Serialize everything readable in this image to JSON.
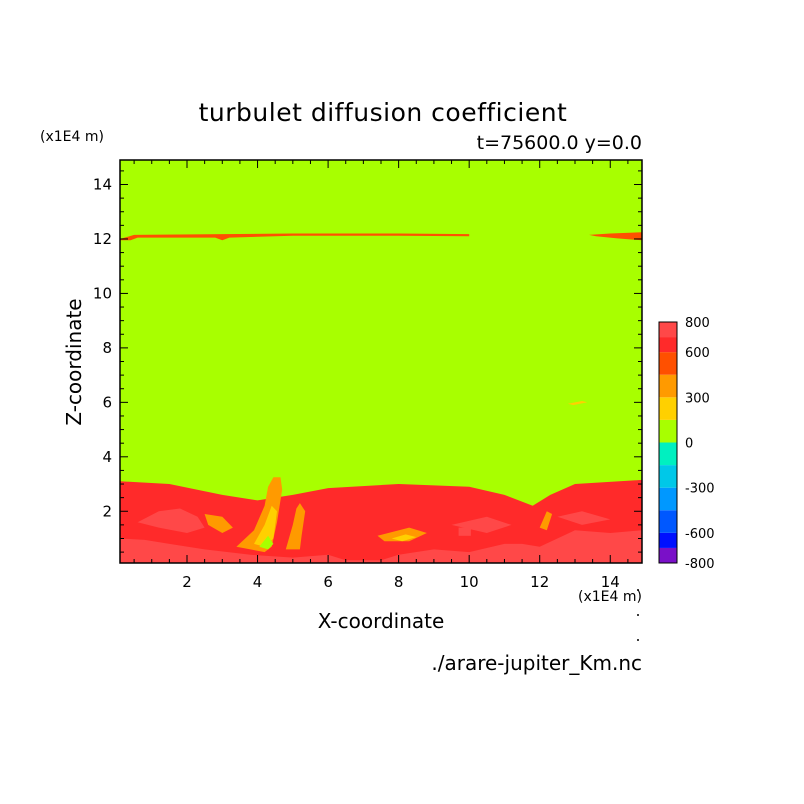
{
  "chart_data": {
    "type": "heatmap",
    "title": "turbulet diffusion coefficient",
    "subtitle": "t=75600.0 y=0.0",
    "xlabel": "X-coordinate",
    "ylabel": "Z-coordinate",
    "x_unit": "(x1E4 m)",
    "y_unit": "(x1E4 m)",
    "xlim": [
      0.1,
      14.9
    ],
    "ylim": [
      0.1,
      14.9
    ],
    "x_ticks": [
      "2",
      "4",
      "6",
      "8",
      "10",
      "12",
      "14"
    ],
    "x_tick_values": [
      2,
      4,
      6,
      8,
      10,
      12,
      14
    ],
    "y_ticks": [
      "2",
      "4",
      "6",
      "8",
      "10",
      "12",
      "14"
    ],
    "y_tick_values": [
      2,
      4,
      6,
      8,
      10,
      12,
      14
    ],
    "colorbar": {
      "labels": [
        "800",
        "600",
        "300",
        "0",
        "-300",
        "-600",
        "-800"
      ],
      "label_values": [
        800,
        600,
        300,
        0,
        -300,
        -600,
        -800
      ],
      "levels": [
        -800,
        -700,
        -600,
        -450,
        -300,
        -150,
        0,
        150,
        300,
        450,
        600,
        700,
        800
      ],
      "colors": [
        "#7a10c8",
        "#0010ff",
        "#0058ff",
        "#0098ff",
        "#00c8e8",
        "#00f0c0",
        "#a8ff00",
        "#ffd000",
        "#ff9a00",
        "#ff5000",
        "#ff2a2a",
        "#ff4848",
        "#ffaaaa"
      ]
    },
    "background_value": 75,
    "regions": [
      {
        "name": "surface-layer",
        "value": 650,
        "points": [
          [
            0.1,
            3.1
          ],
          [
            1.5,
            3.0
          ],
          [
            3,
            2.6
          ],
          [
            4,
            2.4
          ],
          [
            5,
            2.6
          ],
          [
            6,
            2.85
          ],
          [
            8,
            3.0
          ],
          [
            10,
            2.9
          ],
          [
            11,
            2.6
          ],
          [
            11.8,
            2.2
          ],
          [
            12.3,
            2.6
          ],
          [
            13,
            3.0
          ],
          [
            14.9,
            3.15
          ],
          [
            14.9,
            0.1
          ],
          [
            0.1,
            0.1
          ]
        ]
      },
      {
        "name": "upper-band",
        "value": 550,
        "points": [
          [
            0.1,
            12.0
          ],
          [
            0.5,
            12.15
          ],
          [
            3.0,
            12.18
          ],
          [
            5,
            12.2
          ],
          [
            8,
            12.2
          ],
          [
            10,
            12.18
          ],
          [
            10,
            12.1
          ],
          [
            8,
            12.12
          ],
          [
            5,
            12.12
          ],
          [
            3.2,
            12.05
          ],
          [
            3,
            11.95
          ],
          [
            2.8,
            12.05
          ],
          [
            1,
            12.05
          ],
          [
            0.6,
            12.05
          ],
          [
            0.4,
            11.95
          ],
          [
            0.1,
            11.95
          ]
        ]
      },
      {
        "name": "upper-band-right",
        "value": 550,
        "points": [
          [
            13.4,
            12.15
          ],
          [
            14,
            12.2
          ],
          [
            14.9,
            12.25
          ],
          [
            14.9,
            11.95
          ],
          [
            14.2,
            12.02
          ],
          [
            13.6,
            12.1
          ]
        ]
      },
      {
        "name": "small-blob",
        "value": 200,
        "points": [
          [
            12.8,
            5.95
          ],
          [
            13.2,
            6.05
          ],
          [
            13.35,
            6.0
          ],
          [
            12.95,
            5.9
          ]
        ]
      },
      {
        "name": "pink-bottom",
        "value": 780,
        "points": [
          [
            0.1,
            1.0
          ],
          [
            0.8,
            0.95
          ],
          [
            1.5,
            0.8
          ],
          [
            2.5,
            0.6
          ],
          [
            3.8,
            0.4
          ],
          [
            5,
            0.3
          ],
          [
            6,
            0.4
          ],
          [
            6.5,
            0.2
          ],
          [
            7.5,
            0.2
          ],
          [
            8,
            0.4
          ],
          [
            9,
            0.6
          ],
          [
            10,
            0.5
          ],
          [
            11,
            0.8
          ],
          [
            11.5,
            0.8
          ],
          [
            12,
            0.7
          ],
          [
            12.5,
            1.0
          ],
          [
            13,
            1.3
          ],
          [
            14,
            1.2
          ],
          [
            14.9,
            1.3
          ],
          [
            14.9,
            0.1
          ],
          [
            0.1,
            0.1
          ]
        ]
      },
      {
        "name": "pink-left",
        "value": 780,
        "points": [
          [
            0.6,
            1.6
          ],
          [
            1.2,
            2.0
          ],
          [
            1.8,
            2.1
          ],
          [
            2.3,
            1.8
          ],
          [
            2.5,
            1.4
          ],
          [
            2.0,
            1.2
          ],
          [
            1.2,
            1.4
          ]
        ]
      },
      {
        "name": "pink-mid",
        "value": 780,
        "points": [
          [
            9.5,
            1.5
          ],
          [
            10.5,
            1.8
          ],
          [
            11.2,
            1.5
          ],
          [
            10.5,
            1.2
          ]
        ]
      },
      {
        "name": "pink-right",
        "value": 780,
        "points": [
          [
            12.5,
            1.8
          ],
          [
            13.2,
            2.0
          ],
          [
            14.0,
            1.7
          ],
          [
            13.2,
            1.5
          ]
        ]
      },
      {
        "name": "pink-square",
        "value": 780,
        "points": [
          [
            9.7,
            1.1
          ],
          [
            10.05,
            1.1
          ],
          [
            10.05,
            1.4
          ],
          [
            9.7,
            1.4
          ]
        ]
      },
      {
        "name": "orange-plume",
        "value": 380,
        "points": [
          [
            3.4,
            0.7
          ],
          [
            3.9,
            1.3
          ],
          [
            4.2,
            2.2
          ],
          [
            4.3,
            2.9
          ],
          [
            4.45,
            3.25
          ],
          [
            4.65,
            3.25
          ],
          [
            4.7,
            2.8
          ],
          [
            4.55,
            1.6
          ],
          [
            4.4,
            0.7
          ],
          [
            4.2,
            0.5
          ]
        ]
      },
      {
        "name": "orange-plume-2",
        "value": 380,
        "points": [
          [
            4.8,
            0.6
          ],
          [
            5.0,
            1.5
          ],
          [
            5.1,
            2.1
          ],
          [
            5.2,
            2.3
          ],
          [
            5.35,
            2.0
          ],
          [
            5.25,
            1.1
          ],
          [
            5.2,
            0.6
          ]
        ]
      },
      {
        "name": "orange-left",
        "value": 380,
        "points": [
          [
            2.5,
            1.9
          ],
          [
            3.0,
            1.8
          ],
          [
            3.3,
            1.4
          ],
          [
            3.0,
            1.2
          ],
          [
            2.6,
            1.5
          ]
        ]
      },
      {
        "name": "orange-center",
        "value": 380,
        "points": [
          [
            7.4,
            1.1
          ],
          [
            8.3,
            1.4
          ],
          [
            8.8,
            1.2
          ],
          [
            8.3,
            0.9
          ],
          [
            7.6,
            0.9
          ]
        ]
      },
      {
        "name": "orange-right",
        "value": 380,
        "points": [
          [
            12.0,
            1.4
          ],
          [
            12.2,
            2.0
          ],
          [
            12.35,
            1.9
          ],
          [
            12.2,
            1.3
          ]
        ]
      },
      {
        "name": "yellow-core",
        "value": 220,
        "points": [
          [
            3.9,
            0.8
          ],
          [
            4.2,
            1.5
          ],
          [
            4.4,
            2.2
          ],
          [
            4.55,
            2.0
          ],
          [
            4.45,
            1.0
          ],
          [
            4.2,
            0.7
          ]
        ]
      },
      {
        "name": "green-hole",
        "value": 50,
        "points": [
          [
            4.05,
            0.7
          ],
          [
            4.3,
            1.1
          ],
          [
            4.45,
            0.8
          ],
          [
            4.3,
            0.6
          ]
        ]
      },
      {
        "name": "yellow-center",
        "value": 220,
        "points": [
          [
            7.8,
            1.0
          ],
          [
            8.2,
            1.15
          ],
          [
            8.5,
            1.05
          ],
          [
            8.1,
            0.9
          ]
        ]
      }
    ]
  },
  "filename": "./arare-jupiter_Km.nc"
}
